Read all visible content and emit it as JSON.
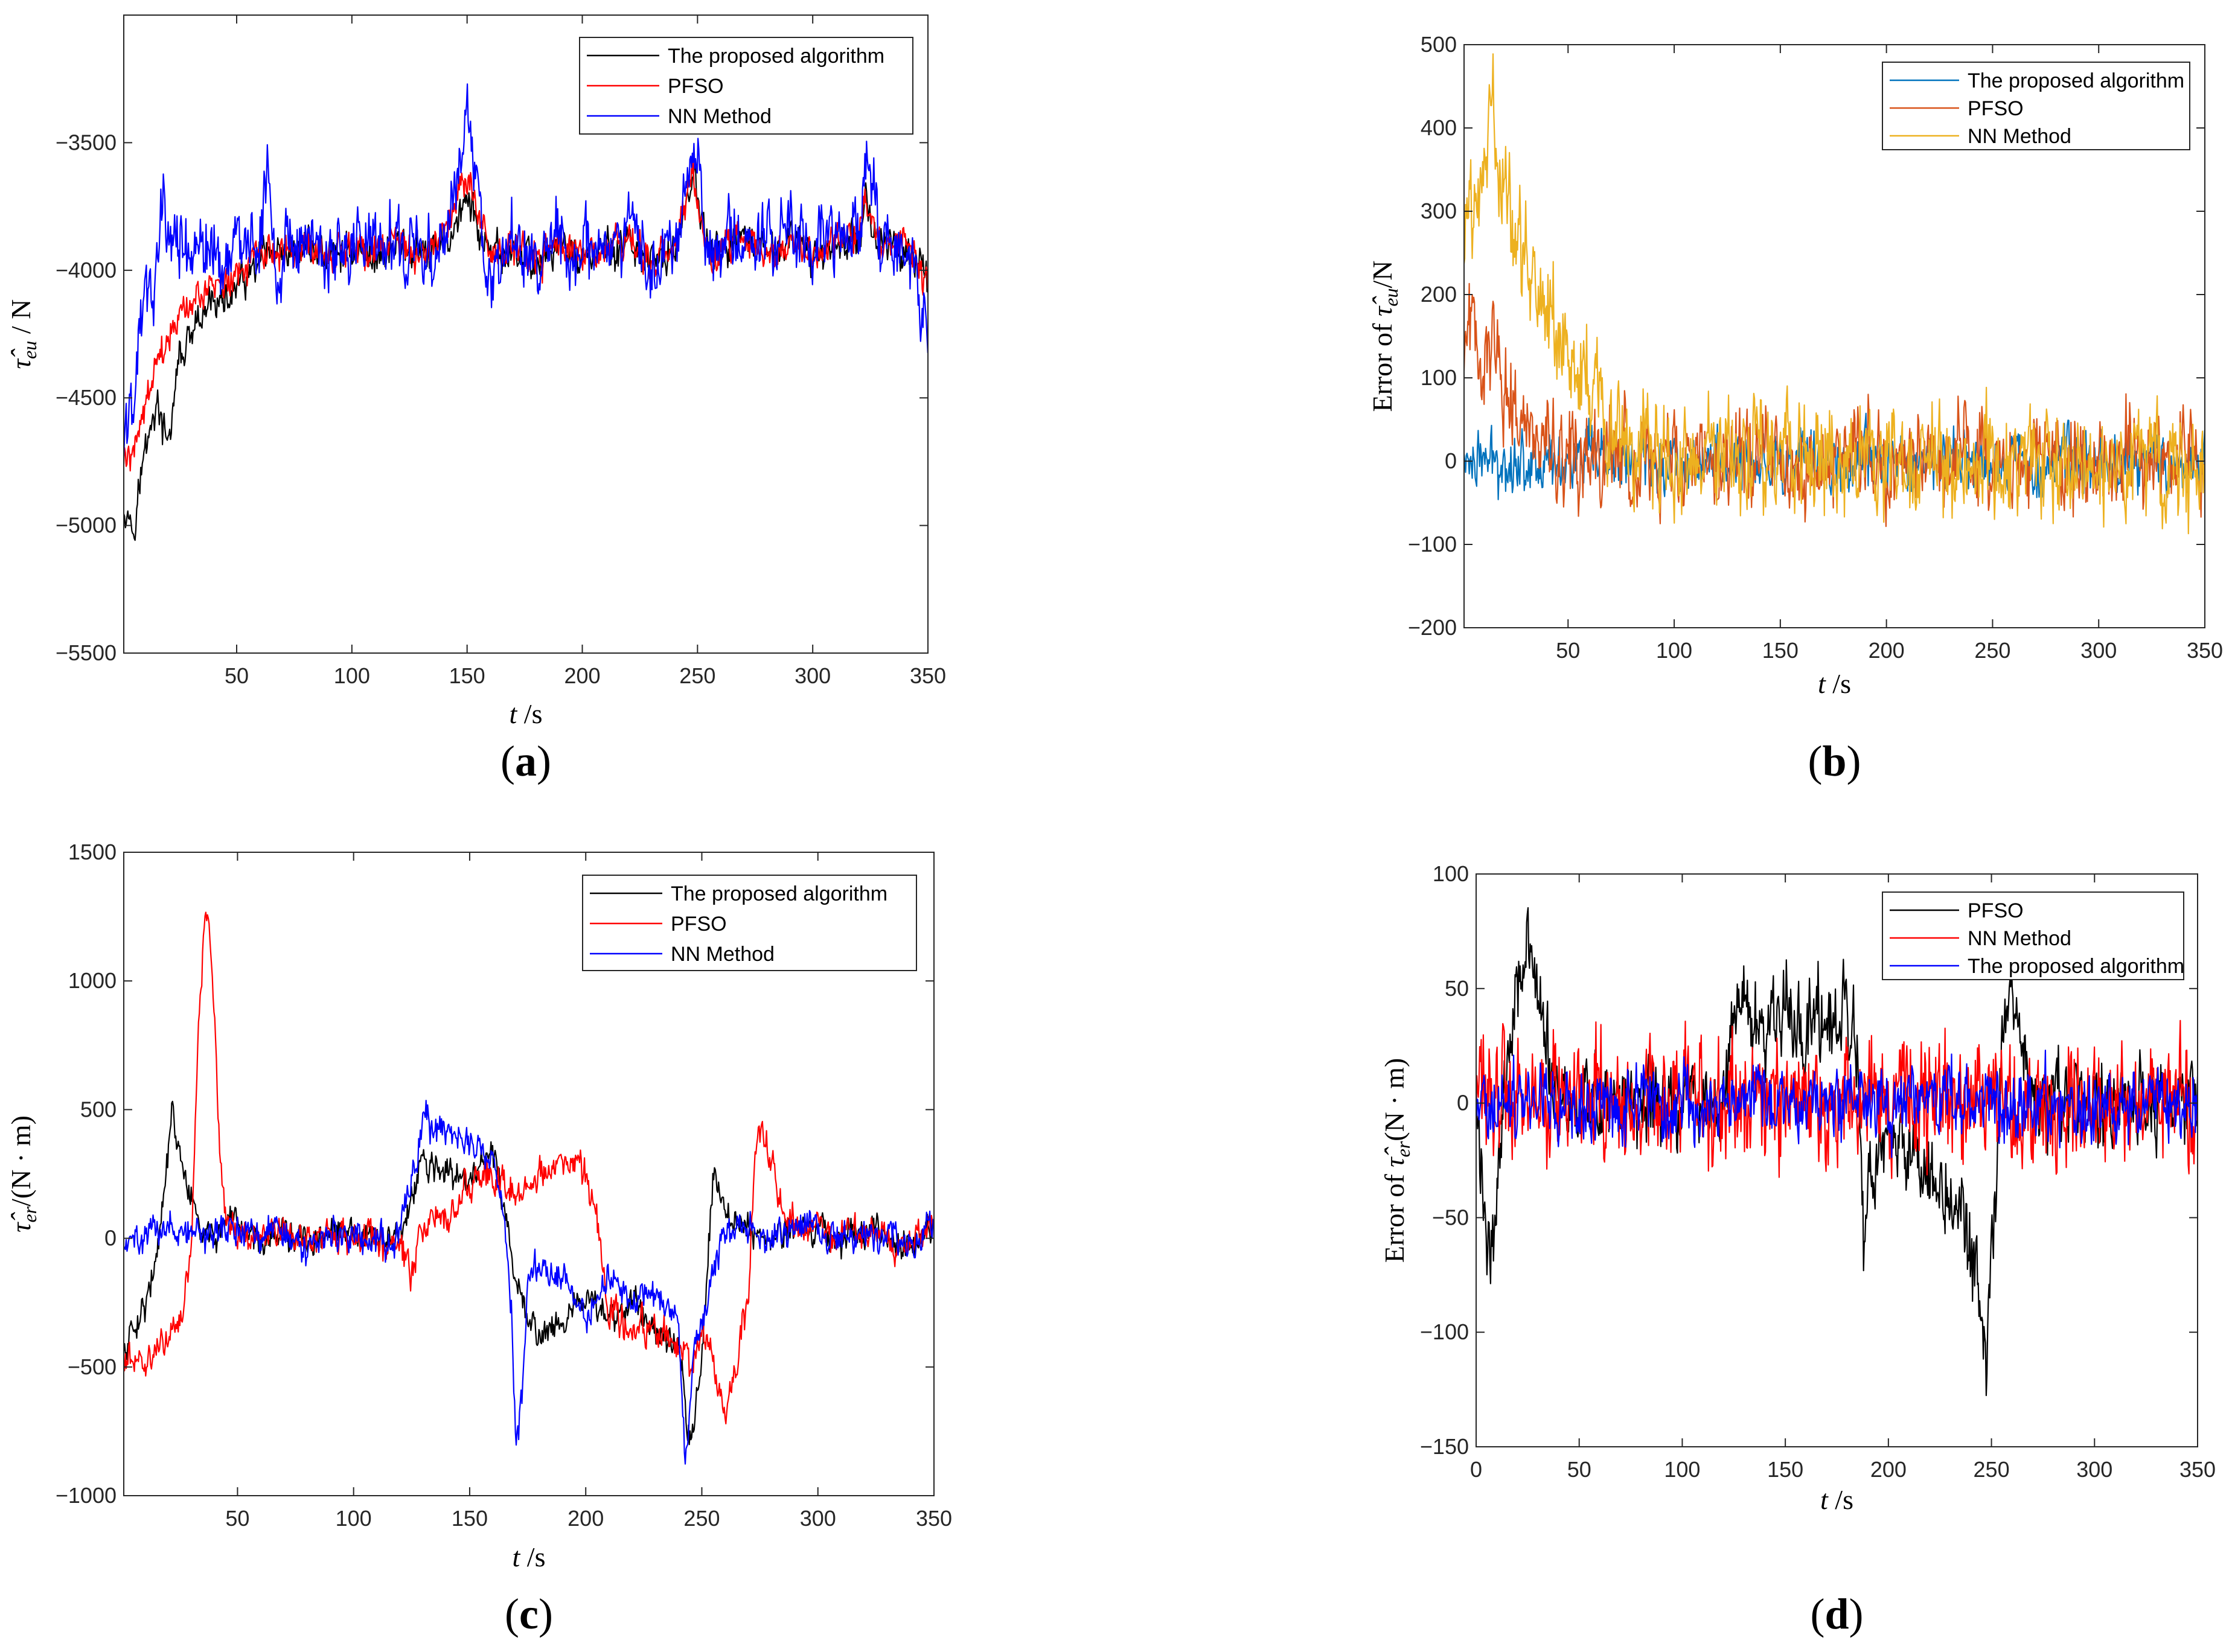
{
  "chart_data": [
    {
      "id": "a",
      "type": "line",
      "panel_label": "(a)",
      "panel_letter": "a",
      "xlabel_var": "t",
      "xlabel_unit": "/s",
      "ylabel": "τ̂eu / N",
      "ylabel_main": "τ̂",
      "ylabel_sub": "eu",
      "ylabel_rest": " / N",
      "xlim": [
        1,
        350
      ],
      "ylim": [
        -5500,
        -3000
      ],
      "xticks": [
        50,
        100,
        150,
        200,
        250,
        300,
        350
      ],
      "yticks": [
        -5500,
        -5000,
        -4500,
        -4000,
        -3500
      ],
      "xtick_labels": [
        "50",
        "100",
        "150",
        "200",
        "250",
        "300",
        "350"
      ],
      "ytick_labels": [
        "−5500",
        "−5000",
        "−4500",
        "−4000",
        "−3500"
      ],
      "legend_position": "top-right",
      "series": [
        {
          "name": "The proposed algorithm",
          "color": "#000000",
          "x": [
            1,
            5,
            10,
            15,
            20,
            25,
            30,
            35,
            40,
            45,
            50,
            55,
            60,
            65,
            70,
            80,
            90,
            100,
            110,
            120,
            130,
            140,
            150,
            160,
            170,
            180,
            190,
            200,
            210,
            220,
            230,
            240,
            248,
            255,
            260,
            270,
            280,
            290,
            300,
            310,
            320,
            323,
            330,
            340,
            350
          ],
          "values": [
            -4900,
            -5000,
            -4720,
            -4520,
            -4700,
            -4350,
            -4280,
            -4200,
            -4100,
            -4150,
            -4050,
            -4050,
            -3960,
            -3950,
            -3980,
            -3900,
            -3950,
            -3910,
            -3950,
            -3890,
            -3960,
            -3900,
            -3720,
            -3960,
            -3920,
            -3970,
            -3900,
            -3960,
            -3930,
            -3900,
            -3990,
            -3920,
            -3620,
            -3950,
            -3920,
            -3900,
            -3940,
            -3880,
            -3950,
            -3900,
            -3850,
            -3740,
            -3930,
            -3900,
            -4050
          ],
          "noise": 65
        },
        {
          "name": "PFSO",
          "color": "#ff0000",
          "x": [
            1,
            5,
            10,
            15,
            20,
            25,
            30,
            35,
            40,
            45,
            50,
            55,
            60,
            65,
            70,
            80,
            90,
            100,
            110,
            120,
            130,
            140,
            150,
            160,
            170,
            180,
            190,
            200,
            210,
            220,
            230,
            240,
            248,
            255,
            260,
            270,
            280,
            290,
            300,
            310,
            320,
            323,
            330,
            340,
            350
          ],
          "values": [
            -4750,
            -4700,
            -4520,
            -4400,
            -4300,
            -4200,
            -4150,
            -4100,
            -4050,
            -4050,
            -4000,
            -4000,
            -3950,
            -3950,
            -3970,
            -3900,
            -3940,
            -3900,
            -3940,
            -3880,
            -3950,
            -3890,
            -3620,
            -3950,
            -3910,
            -3960,
            -3890,
            -3950,
            -3920,
            -3890,
            -3980,
            -3910,
            -3590,
            -3940,
            -3910,
            -3890,
            -3930,
            -3870,
            -3940,
            -3890,
            -3840,
            -3700,
            -3920,
            -3890,
            -4040
          ],
          "noise": 60
        },
        {
          "name": "NN Method",
          "color": "#0000ff",
          "x": [
            1,
            5,
            10,
            15,
            18,
            20,
            25,
            30,
            35,
            40,
            45,
            50,
            55,
            60,
            64,
            68,
            70,
            80,
            90,
            100,
            110,
            120,
            130,
            140,
            150,
            160,
            170,
            180,
            190,
            200,
            210,
            220,
            230,
            240,
            248,
            255,
            260,
            270,
            280,
            290,
            300,
            310,
            320,
            323,
            330,
            340,
            350
          ],
          "values": [
            -4650,
            -4500,
            -4050,
            -4100,
            -3700,
            -3850,
            -3900,
            -3920,
            -3950,
            -3900,
            -3950,
            -3900,
            -3950,
            -3880,
            -3560,
            -4200,
            -3900,
            -3880,
            -3930,
            -3880,
            -3920,
            -3870,
            -3940,
            -3880,
            -3400,
            -4050,
            -3900,
            -3950,
            -3880,
            -3940,
            -3900,
            -3870,
            -3980,
            -3900,
            -3500,
            -3930,
            -3900,
            -3880,
            -3920,
            -3850,
            -3930,
            -3880,
            -3820,
            -3520,
            -3900,
            -3880,
            -4200
          ],
          "noise": 120
        }
      ]
    },
    {
      "id": "b",
      "type": "line",
      "panel_label": "(b)",
      "panel_letter": "b",
      "xlabel_var": "t",
      "xlabel_unit": "/s",
      "ylabel": "Error of τ̂eu/N",
      "ylabel_pre": "Error of ",
      "ylabel_main": "τ̂",
      "ylabel_sub": "eu",
      "ylabel_rest": "/N",
      "xlim": [
        1,
        350
      ],
      "ylim": [
        -200,
        500
      ],
      "xticks": [
        50,
        100,
        150,
        200,
        250,
        300,
        350
      ],
      "yticks": [
        -200,
        -100,
        0,
        100,
        200,
        300,
        400,
        500
      ],
      "xtick_labels": [
        "50",
        "100",
        "150",
        "200",
        "250",
        "300",
        "350"
      ],
      "ytick_labels": [
        "−200",
        "−100",
        "0",
        "100",
        "200",
        "300",
        "400",
        "500"
      ],
      "legend_position": "top-right",
      "series": [
        {
          "name": "The proposed algorithm",
          "color": "#0072bd",
          "x": [
            1,
            50,
            100,
            150,
            200,
            250,
            300,
            350
          ],
          "values": [
            0,
            0,
            0,
            0,
            0,
            0,
            0,
            0
          ],
          "noise": 30
        },
        {
          "name": "PFSO",
          "color": "#d95319",
          "x": [
            1,
            5,
            10,
            15,
            20,
            25,
            30,
            40,
            50,
            60,
            100,
            150,
            200,
            250,
            300,
            350
          ],
          "values": [
            120,
            160,
            110,
            140,
            90,
            60,
            40,
            20,
            10,
            5,
            0,
            0,
            0,
            0,
            0,
            0
          ],
          "noise": 48
        },
        {
          "name": "NN Method",
          "color": "#edb120",
          "x": [
            1,
            5,
            10,
            15,
            20,
            25,
            30,
            35,
            40,
            45,
            50,
            55,
            60,
            70,
            80,
            100,
            150,
            200,
            250,
            300,
            350
          ],
          "values": [
            280,
            300,
            390,
            400,
            330,
            280,
            230,
            210,
            180,
            150,
            130,
            110,
            80,
            40,
            20,
            10,
            0,
            0,
            0,
            0,
            0
          ],
          "noise": 55
        }
      ]
    },
    {
      "id": "c",
      "type": "line",
      "panel_label": "(c)",
      "panel_letter": "c",
      "xlabel_var": "t",
      "xlabel_unit": "/s",
      "ylabel": "τ̂er/(N·m)",
      "ylabel_main": "τ̂",
      "ylabel_sub": "er",
      "ylabel_rest": "/(N · m)",
      "xlim": [
        1,
        350
      ],
      "ylim": [
        -1000,
        1500
      ],
      "xticks": [
        50,
        100,
        150,
        200,
        250,
        300,
        350
      ],
      "yticks": [
        -1000,
        -500,
        0,
        500,
        1000,
        1500
      ],
      "xtick_labels": [
        "50",
        "100",
        "150",
        "200",
        "250",
        "300",
        "350"
      ],
      "ytick_labels": [
        "−1000",
        "−500",
        "0",
        "500",
        "1000",
        "1500"
      ],
      "legend_position": "top-right",
      "series": [
        {
          "name": "The proposed algorithm",
          "color": "#000000",
          "x": [
            1,
            5,
            10,
            15,
            20,
            22,
            25,
            30,
            35,
            40,
            50,
            60,
            70,
            80,
            90,
            100,
            110,
            120,
            125,
            130,
            140,
            150,
            160,
            165,
            170,
            180,
            190,
            200,
            210,
            220,
            230,
            240,
            245,
            250,
            255,
            260,
            265,
            270,
            280,
            290,
            300,
            310,
            320,
            330,
            340,
            350
          ],
          "values": [
            -450,
            -350,
            -250,
            -100,
            300,
            520,
            300,
            150,
            0,
            20,
            40,
            0,
            30,
            -30,
            20,
            10,
            -10,
            0,
            150,
            300,
            250,
            220,
            350,
            100,
            -200,
            -380,
            -300,
            -250,
            -300,
            -250,
            -350,
            -400,
            -800,
            -500,
            300,
            100,
            50,
            50,
            0,
            40,
            30,
            0,
            30,
            10,
            -30,
            50
          ],
          "noise": 50
        },
        {
          "name": "PFSO",
          "color": "#ff0000",
          "x": [
            1,
            5,
            10,
            15,
            20,
            25,
            30,
            33,
            36,
            38,
            40,
            42,
            45,
            50,
            60,
            70,
            80,
            90,
            100,
            110,
            120,
            125,
            130,
            140,
            150,
            160,
            170,
            180,
            190,
            200,
            205,
            210,
            220,
            230,
            240,
            245,
            250,
            255,
            260,
            265,
            270,
            273,
            276,
            280,
            285,
            290,
            300,
            310,
            320,
            330,
            340,
            350
          ],
          "values": [
            -500,
            -450,
            -500,
            -450,
            -350,
            -300,
            -100,
            800,
            1200,
            1200,
            900,
            400,
            50,
            20,
            0,
            40,
            -20,
            20,
            0,
            0,
            -30,
            -150,
            50,
            80,
            200,
            250,
            150,
            250,
            300,
            250,
            50,
            -300,
            -350,
            -350,
            -400,
            -500,
            -380,
            -450,
            -700,
            -500,
            -200,
            350,
            480,
            300,
            100,
            50,
            30,
            0,
            40,
            0,
            -30,
            60
          ],
          "noise": 55
        },
        {
          "name": "NN Method",
          "color": "#0000ff",
          "x": [
            1,
            5,
            10,
            15,
            20,
            25,
            30,
            40,
            50,
            60,
            70,
            80,
            90,
            100,
            110,
            120,
            125,
            130,
            140,
            150,
            160,
            165,
            168,
            170,
            172,
            175,
            180,
            190,
            200,
            210,
            220,
            230,
            240,
            243,
            246,
            250,
            255,
            260,
            270,
            280,
            290,
            300,
            310,
            320,
            330,
            340,
            350
          ],
          "values": [
            -50,
            0,
            20,
            40,
            50,
            0,
            10,
            30,
            40,
            0,
            30,
            -30,
            20,
            10,
            -10,
            0,
            200,
            450,
            400,
            380,
            300,
            100,
            -300,
            -800,
            -700,
            -150,
            -100,
            -150,
            -300,
            -150,
            -250,
            -200,
            -350,
            -850,
            -500,
            -300,
            -150,
            50,
            50,
            0,
            40,
            30,
            0,
            30,
            10,
            -30,
            50
          ],
          "noise": 55
        }
      ]
    },
    {
      "id": "d",
      "type": "line",
      "panel_label": "(d)",
      "panel_letter": "d",
      "xlabel_var": "t",
      "xlabel_unit": "/s",
      "ylabel": "Error of τ̂er(N·m)",
      "ylabel_pre": "Error of ",
      "ylabel_main": "τ̂",
      "ylabel_sub": "er",
      "ylabel_rest": "(N · m)",
      "xlim": [
        0,
        350
      ],
      "ylim": [
        -150,
        100
      ],
      "xticks": [
        0,
        50,
        100,
        150,
        200,
        250,
        300,
        350
      ],
      "yticks": [
        -150,
        -100,
        -50,
        0,
        50,
        100
      ],
      "xtick_labels": [
        "0",
        "50",
        "100",
        "150",
        "200",
        "250",
        "300",
        "350"
      ],
      "ytick_labels": [
        "−150",
        "−100",
        "−50",
        "0",
        "50",
        "100"
      ],
      "legend_position": "top-right",
      "series": [
        {
          "name": "PFSO",
          "color": "#000000",
          "x": [
            0,
            3,
            5,
            8,
            10,
            15,
            20,
            25,
            30,
            35,
            40,
            60,
            80,
            100,
            120,
            125,
            130,
            140,
            150,
            160,
            170,
            175,
            180,
            185,
            188,
            190,
            195,
            200,
            210,
            220,
            230,
            240,
            245,
            248,
            252,
            255,
            260,
            270,
            300,
            350
          ],
          "values": [
            0,
            -40,
            -60,
            -55,
            -40,
            20,
            60,
            70,
            40,
            20,
            0,
            0,
            0,
            0,
            0,
            40,
            45,
            30,
            40,
            35,
            40,
            30,
            35,
            20,
            -60,
            -40,
            -30,
            -20,
            -20,
            -30,
            -40,
            -60,
            -100,
            -110,
            -40,
            20,
            40,
            0,
            0,
            0
          ],
          "noise": 16
        },
        {
          "name": "NN Method",
          "color": "#ff0000",
          "x": [
            0,
            50,
            100,
            150,
            200,
            250,
            300,
            350
          ],
          "values": [
            0,
            0,
            0,
            0,
            0,
            0,
            0,
            0
          ],
          "noise": 22
        },
        {
          "name": "The proposed algorithm",
          "color": "#0000ff",
          "x": [
            0,
            50,
            100,
            150,
            200,
            250,
            300,
            350
          ],
          "values": [
            0,
            0,
            0,
            0,
            0,
            0,
            0,
            0
          ],
          "noise": 13
        }
      ]
    }
  ]
}
